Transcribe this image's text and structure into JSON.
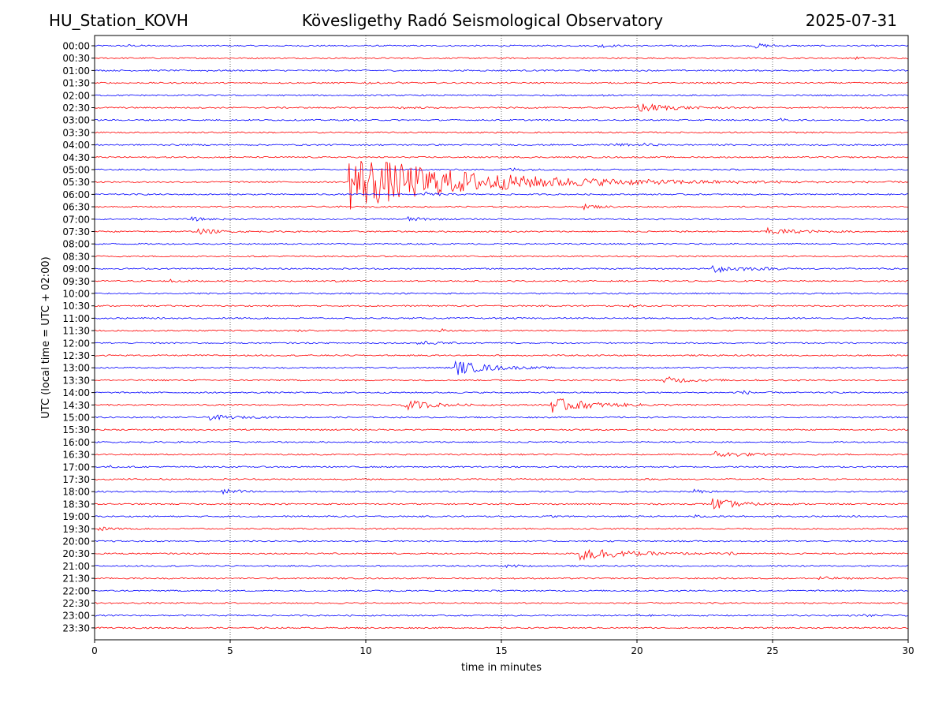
{
  "header": {
    "station": "HU_Station_KOVH",
    "observatory": "Kövesligethy Radó Seismological Observatory",
    "date": "2025-07-31"
  },
  "chart_data": {
    "type": "line",
    "title": "Kövesligethy Radó Seismological Observatory",
    "xlabel": "time in minutes",
    "ylabel": "UTC (local time = UTC + 02:00)",
    "xlim": [
      0,
      30
    ],
    "xticks": [
      0,
      5,
      10,
      15,
      20,
      25,
      30
    ],
    "grid": "vertical dotted lines at each x tick",
    "colors": {
      "even_rows": "#0000ff",
      "odd_rows": "#ff0000"
    },
    "row_labels": [
      "00:00",
      "00:30",
      "01:00",
      "01:30",
      "02:00",
      "02:30",
      "03:00",
      "03:30",
      "04:00",
      "04:30",
      "05:00",
      "05:30",
      "06:00",
      "06:30",
      "07:00",
      "07:30",
      "08:00",
      "08:30",
      "09:00",
      "09:30",
      "10:00",
      "10:30",
      "11:00",
      "11:30",
      "12:00",
      "12:30",
      "13:00",
      "13:30",
      "14:00",
      "14:30",
      "15:00",
      "15:30",
      "16:00",
      "16:30",
      "17:00",
      "17:30",
      "18:00",
      "18:30",
      "19:00",
      "19:30",
      "20:00",
      "20:30",
      "21:00",
      "21:30",
      "22:00",
      "22:30",
      "23:00",
      "23:30"
    ],
    "events": [
      {
        "row": "00:00",
        "t": 1.1,
        "amp": 0.35,
        "dur": 1.0
      },
      {
        "row": "00:00",
        "t": 18.6,
        "amp": 0.8,
        "dur": 0.8
      },
      {
        "row": "00:00",
        "t": 24.3,
        "amp": 1.0,
        "dur": 1.2
      },
      {
        "row": "00:30",
        "t": 28.0,
        "amp": 0.4,
        "dur": 1.0
      },
      {
        "row": "01:00",
        "t": 4.1,
        "amp": 0.3,
        "dur": 0.5
      },
      {
        "row": "01:30",
        "t": 9.9,
        "amp": 0.5,
        "dur": 0.6
      },
      {
        "row": "01:30",
        "t": 11.1,
        "amp": 0.35,
        "dur": 0.5
      },
      {
        "row": "02:00",
        "t": 6.5,
        "amp": 0.3,
        "dur": 0.4
      },
      {
        "row": "02:00",
        "t": 18.6,
        "amp": 0.25,
        "dur": 0.6
      },
      {
        "row": "02:00",
        "t": 28.7,
        "amp": 0.25,
        "dur": 1.2
      },
      {
        "row": "02:30",
        "t": 11.2,
        "amp": 0.35,
        "dur": 1.5
      },
      {
        "row": "02:30",
        "t": 20.0,
        "amp": 2.0,
        "dur": 2.5
      },
      {
        "row": "03:00",
        "t": 25.3,
        "amp": 0.5,
        "dur": 0.7
      },
      {
        "row": "04:00",
        "t": 19.0,
        "amp": 0.6,
        "dur": 1.4
      },
      {
        "row": "04:00",
        "t": 20.2,
        "amp": 0.5,
        "dur": 0.6
      },
      {
        "row": "05:00",
        "t": 15.3,
        "amp": 0.8,
        "dur": 1.0
      },
      {
        "row": "05:30",
        "t": 9.4,
        "amp": 12.0,
        "dur": 9.0
      },
      {
        "row": "06:00",
        "t": 12.2,
        "amp": 0.8,
        "dur": 1.0
      },
      {
        "row": "06:30",
        "t": 18.0,
        "amp": 1.0,
        "dur": 1.2
      },
      {
        "row": "07:00",
        "t": 3.6,
        "amp": 0.7,
        "dur": 1.0
      },
      {
        "row": "07:00",
        "t": 11.5,
        "amp": 1.0,
        "dur": 1.2
      },
      {
        "row": "07:30",
        "t": 3.8,
        "amp": 1.2,
        "dur": 1.4
      },
      {
        "row": "07:30",
        "t": 24.7,
        "amp": 1.4,
        "dur": 2.5
      },
      {
        "row": "09:00",
        "t": 22.8,
        "amp": 1.6,
        "dur": 2.5
      },
      {
        "row": "09:30",
        "t": 2.8,
        "amp": 0.7,
        "dur": 1.0
      },
      {
        "row": "09:30",
        "t": 8.8,
        "amp": 0.5,
        "dur": 0.8
      },
      {
        "row": "10:30",
        "t": 19.7,
        "amp": 0.5,
        "dur": 0.8
      },
      {
        "row": "11:30",
        "t": 7.5,
        "amp": 0.8,
        "dur": 0.7
      },
      {
        "row": "11:30",
        "t": 12.7,
        "amp": 0.9,
        "dur": 0.8
      },
      {
        "row": "12:00",
        "t": 11.9,
        "amp": 0.9,
        "dur": 1.3
      },
      {
        "row": "13:00",
        "t": 13.3,
        "amp": 3.0,
        "dur": 2.5
      },
      {
        "row": "13:30",
        "t": 21.0,
        "amp": 1.4,
        "dur": 2.0
      },
      {
        "row": "14:00",
        "t": 23.7,
        "amp": 1.0,
        "dur": 1.0
      },
      {
        "row": "14:30",
        "t": 11.3,
        "amp": 2.6,
        "dur": 2.0
      },
      {
        "row": "14:30",
        "t": 16.8,
        "amp": 3.2,
        "dur": 3.0
      },
      {
        "row": "15:00",
        "t": 4.2,
        "amp": 1.0,
        "dur": 2.0
      },
      {
        "row": "16:30",
        "t": 22.9,
        "amp": 1.2,
        "dur": 2.5
      },
      {
        "row": "17:00",
        "t": 0.6,
        "amp": 0.4,
        "dur": 0.4
      },
      {
        "row": "18:00",
        "t": 4.7,
        "amp": 1.2,
        "dur": 1.5
      },
      {
        "row": "18:00",
        "t": 22.1,
        "amp": 0.8,
        "dur": 1.0
      },
      {
        "row": "18:30",
        "t": 22.8,
        "amp": 2.5,
        "dur": 1.8
      },
      {
        "row": "19:00",
        "t": 16.8,
        "amp": 0.4,
        "dur": 0.4
      },
      {
        "row": "19:00",
        "t": 22.1,
        "amp": 0.5,
        "dur": 0.8
      },
      {
        "row": "19:30",
        "t": 0.1,
        "amp": 1.0,
        "dur": 0.8
      },
      {
        "row": "20:30",
        "t": 17.9,
        "amp": 3.2,
        "dur": 3.0
      },
      {
        "row": "20:30",
        "t": 23.4,
        "amp": 0.6,
        "dur": 0.4
      },
      {
        "row": "21:00",
        "t": 15.2,
        "amp": 0.7,
        "dur": 0.8
      },
      {
        "row": "21:30",
        "t": 26.7,
        "amp": 0.7,
        "dur": 1.2
      },
      {
        "row": "22:00",
        "t": 10.9,
        "amp": 0.4,
        "dur": 0.5
      },
      {
        "row": "23:00",
        "t": 19.8,
        "amp": 0.6,
        "dur": 0.8
      },
      {
        "row": "23:00",
        "t": 28.3,
        "amp": 0.5,
        "dur": 0.8
      },
      {
        "row": "23:30",
        "t": 6.0,
        "amp": 0.3,
        "dur": 0.4
      }
    ]
  }
}
